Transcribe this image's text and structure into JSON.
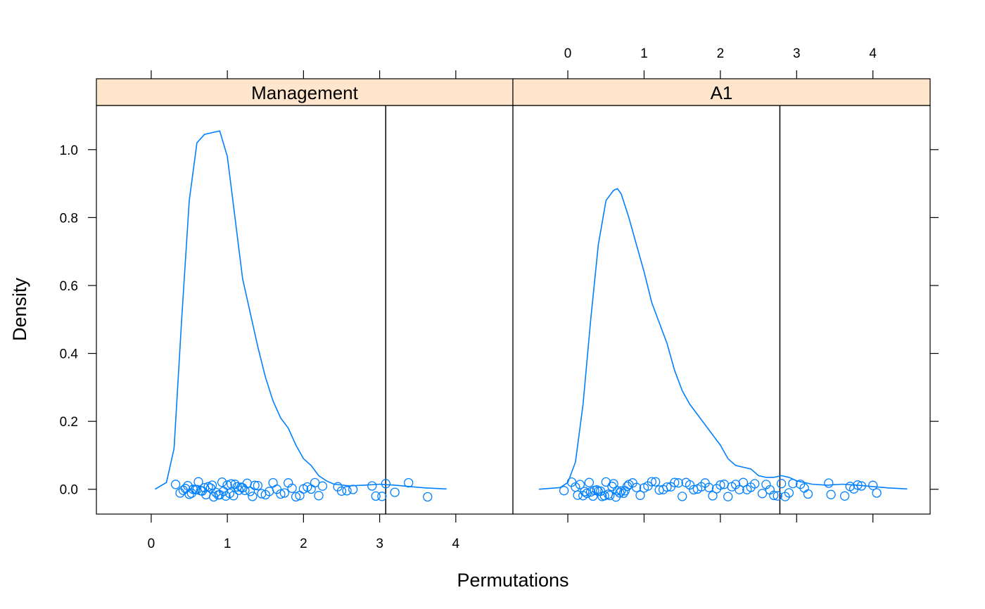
{
  "chart_data": {
    "type": "line",
    "xlabel": "Permutations",
    "ylabel": "Density",
    "xlim": [
      -0.72,
      4.75
    ],
    "ylim": [
      -0.073,
      1.13
    ],
    "x_ticks": [
      "0",
      "1",
      "2",
      "3",
      "4"
    ],
    "y_ticks": [
      "0.0",
      "0.2",
      "0.4",
      "0.6",
      "0.8",
      "1.0"
    ],
    "colors": {
      "line": "#0080ff",
      "strip": "#ffe5cc",
      "reference": "#000000"
    },
    "panels": [
      {
        "name": "Management",
        "reference_x": 3.08,
        "series": [
          {
            "x": [
              0.05,
              0.2,
              0.3,
              0.4,
              0.5,
              0.6,
              0.7,
              0.8,
              0.9,
              1.0,
              1.1,
              1.2,
              1.3,
              1.4,
              1.5,
              1.6,
              1.7,
              1.8,
              1.9,
              2.0,
              2.1,
              2.2,
              2.3,
              2.4,
              2.6,
              2.8,
              3.0,
              3.2,
              3.4,
              3.6,
              3.88
            ],
            "y": [
              0.0,
              0.02,
              0.12,
              0.5,
              0.85,
              1.02,
              1.045,
              1.05,
              1.055,
              0.98,
              0.8,
              0.62,
              0.52,
              0.42,
              0.33,
              0.26,
              0.21,
              0.18,
              0.13,
              0.09,
              0.07,
              0.04,
              0.025,
              0.015,
              0.01,
              0.012,
              0.015,
              0.012,
              0.008,
              0.004,
              0.001
            ]
          }
        ],
        "points": [
          0.32,
          0.38,
          0.42,
          0.45,
          0.48,
          0.5,
          0.53,
          0.55,
          0.58,
          0.6,
          0.62,
          0.65,
          0.67,
          0.7,
          0.72,
          0.75,
          0.78,
          0.8,
          0.82,
          0.85,
          0.88,
          0.9,
          0.93,
          0.95,
          0.98,
          1.0,
          1.03,
          1.05,
          1.08,
          1.1,
          1.13,
          1.15,
          1.18,
          1.2,
          1.23,
          1.26,
          1.3,
          1.33,
          1.36,
          1.4,
          1.45,
          1.5,
          1.55,
          1.6,
          1.65,
          1.7,
          1.75,
          1.8,
          1.85,
          1.9,
          1.95,
          2.0,
          2.05,
          2.1,
          2.15,
          2.2,
          2.25,
          2.45,
          2.5,
          2.57,
          2.65,
          2.9,
          2.95,
          3.03,
          3.08,
          3.2,
          3.38,
          3.63
        ]
      },
      {
        "name": "A1",
        "reference_x": 2.78,
        "series": [
          {
            "x": [
              -0.38,
              -0.1,
              0.0,
              0.1,
              0.2,
              0.3,
              0.4,
              0.5,
              0.6,
              0.65,
              0.7,
              0.8,
              0.9,
              1.0,
              1.1,
              1.2,
              1.3,
              1.4,
              1.5,
              1.6,
              1.7,
              1.8,
              1.9,
              2.0,
              2.1,
              2.2,
              2.3,
              2.4,
              2.5,
              2.6,
              2.7,
              2.8,
              2.9,
              3.0,
              3.2,
              3.4,
              3.6,
              3.8,
              4.0,
              4.2,
              4.45
            ],
            "y": [
              0.0,
              0.005,
              0.02,
              0.08,
              0.25,
              0.5,
              0.72,
              0.85,
              0.88,
              0.885,
              0.87,
              0.8,
              0.72,
              0.64,
              0.55,
              0.49,
              0.43,
              0.35,
              0.29,
              0.25,
              0.22,
              0.19,
              0.16,
              0.13,
              0.09,
              0.07,
              0.065,
              0.06,
              0.04,
              0.035,
              0.035,
              0.04,
              0.035,
              0.025,
              0.015,
              0.012,
              0.015,
              0.012,
              0.008,
              0.004,
              0.001
            ]
          }
        ],
        "points": [
          -0.05,
          0.05,
          0.1,
          0.13,
          0.16,
          0.2,
          0.22,
          0.25,
          0.28,
          0.3,
          0.33,
          0.35,
          0.38,
          0.4,
          0.43,
          0.45,
          0.48,
          0.5,
          0.53,
          0.55,
          0.58,
          0.6,
          0.63,
          0.65,
          0.68,
          0.7,
          0.73,
          0.75,
          0.78,
          0.8,
          0.85,
          0.9,
          0.95,
          1.0,
          1.05,
          1.1,
          1.15,
          1.2,
          1.25,
          1.3,
          1.35,
          1.4,
          1.45,
          1.5,
          1.55,
          1.6,
          1.65,
          1.7,
          1.75,
          1.8,
          1.85,
          1.9,
          1.95,
          2.0,
          2.05,
          2.1,
          2.15,
          2.2,
          2.25,
          2.3,
          2.35,
          2.4,
          2.45,
          2.55,
          2.6,
          2.65,
          2.7,
          2.75,
          2.8,
          2.85,
          2.9,
          2.95,
          3.05,
          3.1,
          3.15,
          3.42,
          3.45,
          3.63,
          3.7,
          3.75,
          3.8,
          3.85,
          4.0,
          4.05
        ]
      }
    ]
  }
}
